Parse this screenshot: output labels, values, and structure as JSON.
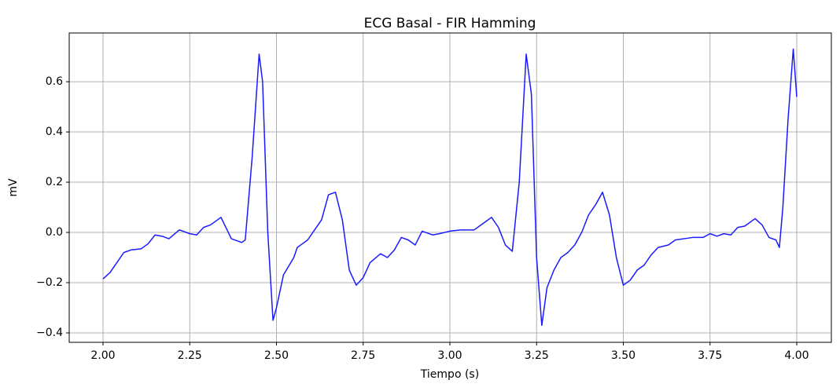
{
  "chart_data": {
    "type": "line",
    "title": "ECG Basal - FIR Hamming",
    "xlabel": "Tiempo (s)",
    "ylabel": "mV",
    "x": [
      2.0,
      2.02,
      2.04,
      2.06,
      2.08,
      2.11,
      2.13,
      2.15,
      2.17,
      2.19,
      2.22,
      2.25,
      2.27,
      2.29,
      2.31,
      2.34,
      2.37,
      2.4,
      2.41,
      2.43,
      2.45,
      2.46,
      2.475,
      2.49,
      2.5,
      2.52,
      2.55,
      2.56,
      2.59,
      2.61,
      2.63,
      2.65,
      2.67,
      2.69,
      2.71,
      2.73,
      2.75,
      2.77,
      2.8,
      2.82,
      2.84,
      2.86,
      2.88,
      2.9,
      2.92,
      2.95,
      2.97,
      3.0,
      3.03,
      3.07,
      3.1,
      3.12,
      3.14,
      3.16,
      3.18,
      3.2,
      3.22,
      3.235,
      3.25,
      3.265,
      3.28,
      3.3,
      3.32,
      3.34,
      3.36,
      3.38,
      3.4,
      3.42,
      3.44,
      3.46,
      3.48,
      3.5,
      3.52,
      3.54,
      3.56,
      3.58,
      3.6,
      3.63,
      3.65,
      3.7,
      3.73,
      3.75,
      3.77,
      3.79,
      3.81,
      3.83,
      3.85,
      3.88,
      3.9,
      3.92,
      3.94,
      3.95,
      3.96,
      3.975,
      3.99,
      4.0
    ],
    "values": [
      -0.185,
      -0.16,
      -0.12,
      -0.08,
      -0.07,
      -0.065,
      -0.045,
      -0.01,
      -0.015,
      -0.025,
      0.01,
      -0.005,
      -0.01,
      0.02,
      0.03,
      0.06,
      -0.025,
      -0.04,
      -0.03,
      0.3,
      0.71,
      0.6,
      0.0,
      -0.35,
      -0.3,
      -0.17,
      -0.1,
      -0.06,
      -0.03,
      0.01,
      0.05,
      0.15,
      0.16,
      0.05,
      -0.15,
      -0.21,
      -0.18,
      -0.12,
      -0.085,
      -0.1,
      -0.07,
      -0.02,
      -0.03,
      -0.05,
      0.005,
      -0.01,
      -0.005,
      0.005,
      0.01,
      0.01,
      0.04,
      0.06,
      0.02,
      -0.05,
      -0.075,
      0.2,
      0.71,
      0.55,
      -0.1,
      -0.37,
      -0.22,
      -0.15,
      -0.1,
      -0.08,
      -0.05,
      0.0,
      0.07,
      0.11,
      0.16,
      0.07,
      -0.1,
      -0.21,
      -0.19,
      -0.15,
      -0.13,
      -0.09,
      -0.06,
      -0.05,
      -0.03,
      -0.02,
      -0.02,
      -0.005,
      -0.015,
      -0.005,
      -0.01,
      0.02,
      0.025,
      0.055,
      0.03,
      -0.02,
      -0.03,
      -0.06,
      0.1,
      0.45,
      0.73,
      0.54
    ],
    "color": "#1a1aff",
    "xlim": [
      1.9025,
      4.0998
    ],
    "ylim": [
      -0.4375,
      0.794
    ],
    "xticks": [
      {
        "value": 2.0,
        "label": "2.00"
      },
      {
        "value": 2.25,
        "label": "2.25"
      },
      {
        "value": 2.5,
        "label": "2.50"
      },
      {
        "value": 2.75,
        "label": "2.75"
      },
      {
        "value": 3.0,
        "label": "3.00"
      },
      {
        "value": 3.25,
        "label": "3.25"
      },
      {
        "value": 3.5,
        "label": "3.50"
      },
      {
        "value": 3.75,
        "label": "3.75"
      },
      {
        "value": 4.0,
        "label": "4.00"
      }
    ],
    "yticks": [
      {
        "value": -0.4,
        "label": "−0.4"
      },
      {
        "value": -0.2,
        "label": "−0.2"
      },
      {
        "value": 0.0,
        "label": "0.0"
      },
      0.2,
      0.4,
      0.6
    ],
    "grid": true
  }
}
